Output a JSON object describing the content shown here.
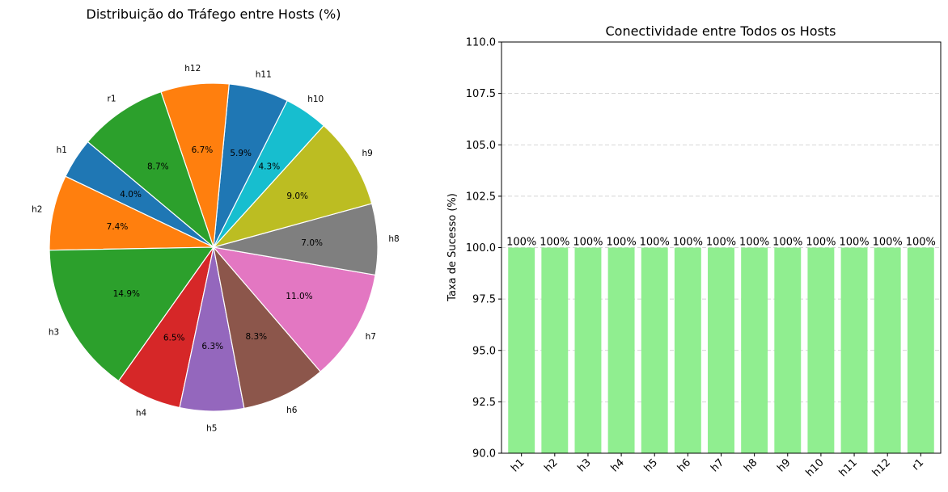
{
  "chart_data": [
    {
      "type": "pie",
      "title": "Distribuição do Tráfego entre Hosts (%)",
      "labels": [
        "h1",
        "h2",
        "h3",
        "h4",
        "h5",
        "h6",
        "h7",
        "h8",
        "h9",
        "h10",
        "h11",
        "h12",
        "r1"
      ],
      "values": [
        4.0,
        7.4,
        14.9,
        6.5,
        6.3,
        8.3,
        11.0,
        7.0,
        9.0,
        4.3,
        5.9,
        6.7,
        8.7
      ],
      "value_labels": [
        "4.0%",
        "7.4%",
        "14.9%",
        "6.5%",
        "6.3%",
        "8.3%",
        "11.0%",
        "7.0%",
        "9.0%",
        "4.3%",
        "5.9%",
        "6.7%",
        "8.7%"
      ],
      "colors": [
        "#1f77b4",
        "#ff7f0e",
        "#2ca02c",
        "#d62728",
        "#9467bd",
        "#8c564b",
        "#e377c2",
        "#7f7f7f",
        "#bcbd22",
        "#17becf",
        "#1f77b4",
        "#ff7f0e",
        "#2ca02c"
      ],
      "start_angle_deg": 140,
      "direction": "counterclockwise",
      "edge_color": "#ffffff"
    },
    {
      "type": "bar",
      "title": "Conectividade entre Todos os Hosts",
      "categories": [
        "h1",
        "h2",
        "h3",
        "h4",
        "h5",
        "h6",
        "h7",
        "h8",
        "h9",
        "h10",
        "h11",
        "h12",
        "r1"
      ],
      "values": [
        100,
        100,
        100,
        100,
        100,
        100,
        100,
        100,
        100,
        100,
        100,
        100,
        100
      ],
      "value_labels": [
        "100%",
        "100%",
        "100%",
        "100%",
        "100%",
        "100%",
        "100%",
        "100%",
        "100%",
        "100%",
        "100%",
        "100%",
        "100%"
      ],
      "xlabel": "",
      "ylabel": "Taxa de Sucesso (%)",
      "ylim": [
        90.0,
        110.0
      ],
      "yticks": [
        "90.0",
        "92.5",
        "95.0",
        "97.5",
        "100.0",
        "102.5",
        "105.0",
        "107.5",
        "110.0"
      ],
      "bar_color": "#90ee90",
      "grid": "y-dashed",
      "xtick_rotation_deg": 45
    }
  ]
}
